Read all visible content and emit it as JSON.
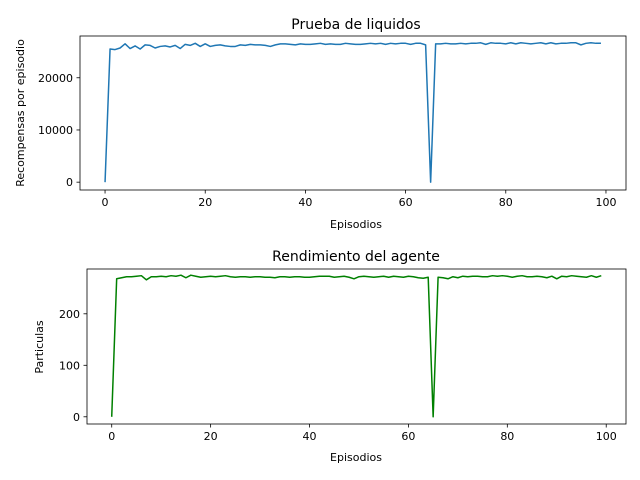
{
  "colors": {
    "top_series": "#1f77b4",
    "bottom_series": "#008000",
    "axes": "#000000"
  },
  "chart_data": [
    {
      "type": "line",
      "title": "Prueba de liquidos",
      "xlabel": "Episodios",
      "ylabel": "Recompensas por episodio",
      "xlim": [
        -5,
        104
      ],
      "ylim": [
        -1500,
        28000
      ],
      "xticks": [
        0,
        20,
        40,
        60,
        80,
        100
      ],
      "yticks": [
        0,
        10000,
        20000
      ],
      "grid": false,
      "series": [
        {
          "values": [
            0,
            25500,
            25400,
            25700,
            26500,
            25600,
            26100,
            25500,
            26300,
            26200,
            25700,
            26000,
            26100,
            25900,
            26200,
            25600,
            26400,
            26200,
            26600,
            26000,
            26500,
            26000,
            26200,
            26300,
            26100,
            26000,
            26000,
            26300,
            26200,
            26400,
            26300,
            26300,
            26200,
            26000,
            26300,
            26500,
            26500,
            26400,
            26300,
            26500,
            26400,
            26400,
            26500,
            26600,
            26400,
            26500,
            26400,
            26400,
            26600,
            26500,
            26400,
            26400,
            26500,
            26600,
            26500,
            26600,
            26400,
            26600,
            26500,
            26600,
            26600,
            26400,
            26600,
            26600,
            26300,
            0,
            26500,
            26500,
            26600,
            26500,
            26500,
            26600,
            26500,
            26600,
            26600,
            26700,
            26400,
            26700,
            26600,
            26600,
            26500,
            26700,
            26500,
            26700,
            26600,
            26500,
            26600,
            26700,
            26500,
            26700,
            26500,
            26600,
            26600,
            26700,
            26700,
            26300,
            26600,
            26700,
            26600,
            26600
          ]
        }
      ]
    },
    {
      "type": "line",
      "title": "Rendimiento del agente",
      "xlabel": "Episodios",
      "ylabel": "Particulas",
      "xlim": [
        -5,
        104
      ],
      "ylim": [
        -14,
        287
      ],
      "xticks": [
        0,
        20,
        40,
        60,
        80,
        100
      ],
      "yticks": [
        0,
        100,
        200
      ],
      "grid": false,
      "series": [
        {
          "values": [
            0,
            268,
            270,
            272,
            272,
            273,
            274,
            266,
            272,
            272,
            273,
            272,
            274,
            273,
            275,
            270,
            275,
            273,
            271,
            272,
            273,
            272,
            273,
            274,
            272,
            271,
            272,
            272,
            271,
            272,
            272,
            271,
            271,
            270,
            272,
            272,
            271,
            272,
            272,
            271,
            271,
            272,
            273,
            273,
            273,
            271,
            272,
            273,
            271,
            268,
            272,
            273,
            272,
            271,
            272,
            273,
            271,
            273,
            272,
            271,
            273,
            272,
            270,
            269,
            271,
            0,
            271,
            270,
            268,
            272,
            270,
            273,
            272,
            273,
            273,
            272,
            272,
            274,
            273,
            274,
            273,
            271,
            273,
            274,
            272,
            272,
            273,
            272,
            270,
            273,
            268,
            273,
            272,
            274,
            273,
            272,
            271,
            274,
            271,
            274
          ]
        }
      ]
    }
  ]
}
